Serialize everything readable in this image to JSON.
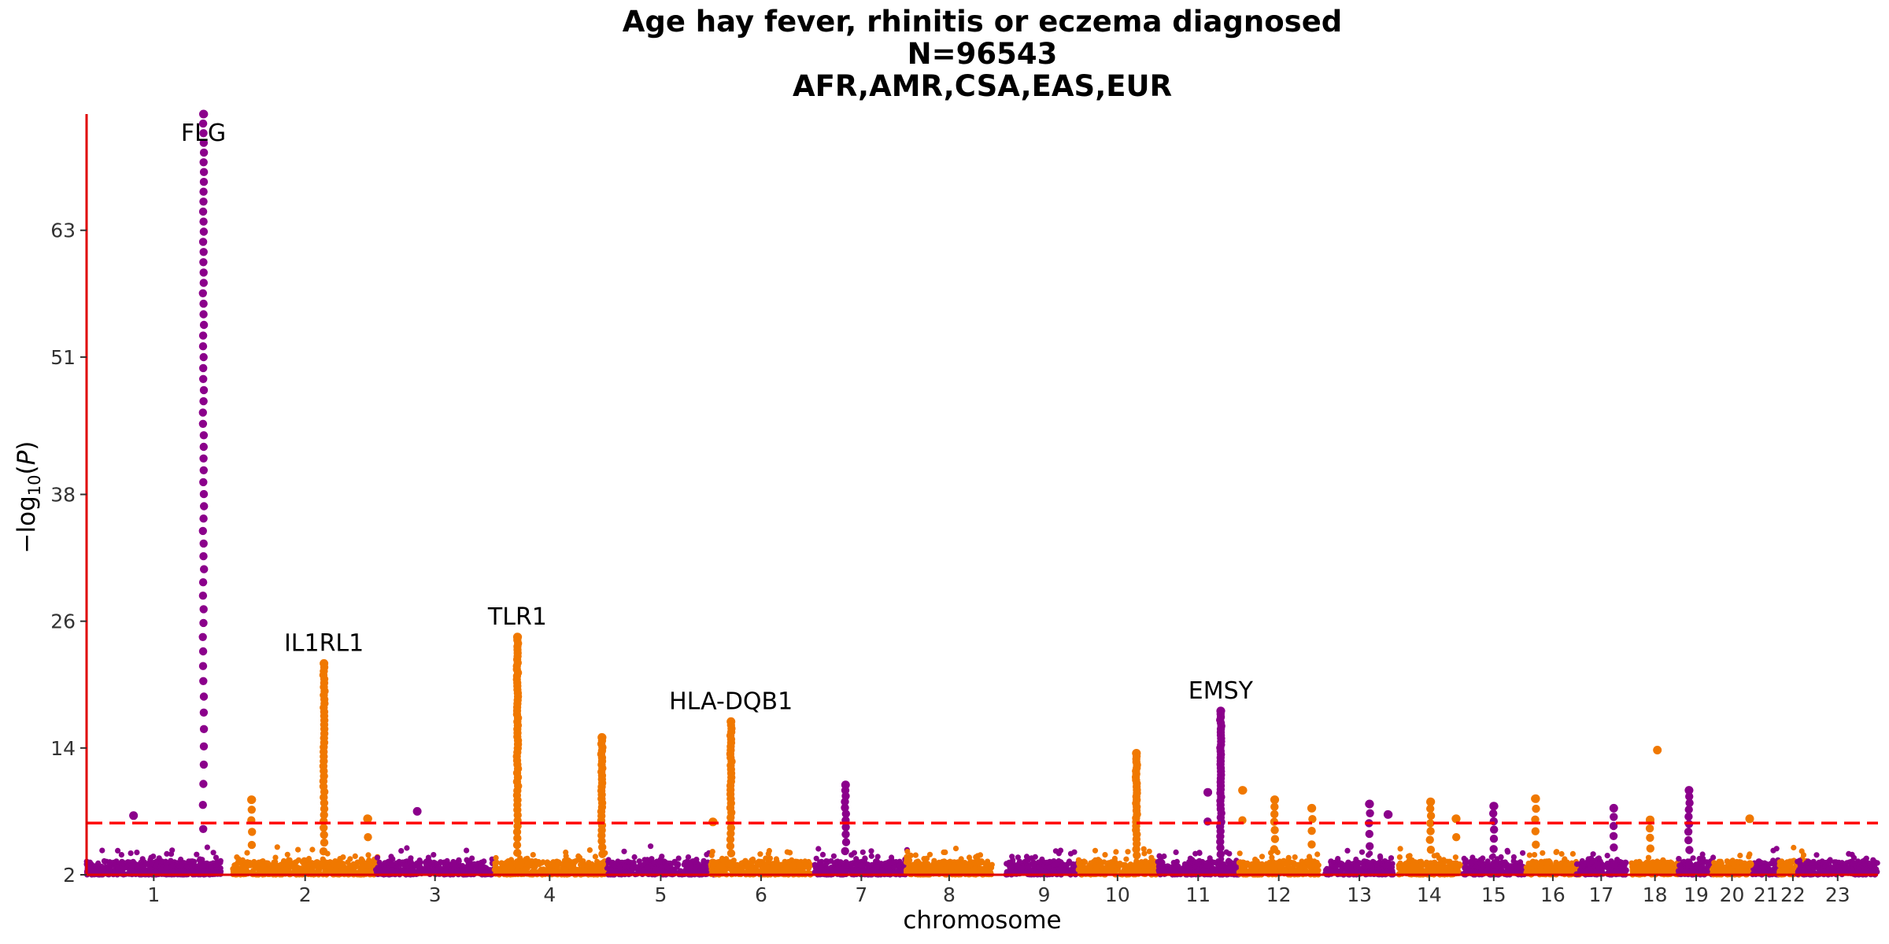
{
  "chart_data": {
    "type": "scatter",
    "subtype": "manhattan",
    "title": [
      "Age hay fever, rhinitis or eczema diagnosed",
      "N=96543",
      "AFR,AMR,CSA,EAS,EUR"
    ],
    "xlabel": "chromosome",
    "ylabel": "-log10(P)",
    "ylim": [
      2,
      74
    ],
    "yticks": [
      2,
      14,
      26,
      38,
      51,
      63
    ],
    "significance_line": 6.9,
    "colors": {
      "odd": "#8B008B",
      "even": "#F07800",
      "threshold": "#FF0000",
      "axis": "#E00000"
    },
    "chromosomes": [
      {
        "label": "1",
        "center": 0.0375,
        "width": 0.075
      },
      {
        "label": "2",
        "center": 0.122,
        "width": 0.081
      },
      {
        "label": "3",
        "center": 0.1945,
        "width": 0.066
      },
      {
        "label": "4",
        "center": 0.2585,
        "width": 0.062
      },
      {
        "label": "5",
        "center": 0.3205,
        "width": 0.06
      },
      {
        "label": "6",
        "center": 0.3765,
        "width": 0.056
      },
      {
        "label": "7",
        "center": 0.4325,
        "width": 0.052
      },
      {
        "label": "8",
        "center": 0.4815,
        "width": 0.048
      },
      {
        "label": "9",
        "center": 0.5345,
        "width": 0.043
      },
      {
        "label": "10",
        "center": 0.5755,
        "width": 0.044
      },
      {
        "label": "11",
        "center": 0.6205,
        "width": 0.045
      },
      {
        "label": "12",
        "center": 0.6655,
        "width": 0.045
      },
      {
        "label": "13",
        "center": 0.7105,
        "width": 0.038
      },
      {
        "label": "14",
        "center": 0.7495,
        "width": 0.035
      },
      {
        "label": "15",
        "center": 0.7855,
        "width": 0.034
      },
      {
        "label": "16",
        "center": 0.8185,
        "width": 0.03
      },
      {
        "label": "17",
        "center": 0.8455,
        "width": 0.028
      },
      {
        "label": "18",
        "center": 0.8755,
        "width": 0.027
      },
      {
        "label": "19",
        "center": 0.8985,
        "width": 0.02
      },
      {
        "label": "20",
        "center": 0.9185,
        "width": 0.022
      },
      {
        "label": "21",
        "center": 0.9375,
        "width": 0.015
      },
      {
        "label": "22",
        "center": 0.9525,
        "width": 0.016
      },
      {
        "label": "23",
        "center": 0.9775,
        "width": 0.045
      }
    ],
    "peaks": [
      {
        "chr": "1",
        "pos": 0.87,
        "max": 74,
        "sig_spread": 14,
        "count": 60
      },
      {
        "chr": "1",
        "pos": 0.35,
        "max": 7.6,
        "sig_spread": 0,
        "count": 2
      },
      {
        "chr": "2",
        "pos": 0.13,
        "max": 9.1,
        "sig_spread": 2,
        "count": 6
      },
      {
        "chr": "2",
        "pos": 0.63,
        "max": 22,
        "sig_spread": 9,
        "count": 40
      },
      {
        "chr": "2",
        "pos": 0.93,
        "max": 7.3,
        "sig_spread": 0,
        "count": 3
      },
      {
        "chr": "3",
        "pos": 0.35,
        "max": 8.0,
        "sig_spread": 0,
        "count": 1
      },
      {
        "chr": "4",
        "pos": 0.21,
        "max": 24.5,
        "sig_spread": 12,
        "count": 55
      },
      {
        "chr": "4",
        "pos": 0.97,
        "max": 15,
        "sig_spread": 6,
        "count": 30
      },
      {
        "chr": "6",
        "pos": 0.2,
        "max": 16.5,
        "sig_spread": 7,
        "count": 32
      },
      {
        "chr": "6",
        "pos": 0.02,
        "max": 7.0,
        "sig_spread": 0,
        "count": 2
      },
      {
        "chr": "7",
        "pos": 0.33,
        "max": 10.5,
        "sig_spread": 3,
        "count": 12
      },
      {
        "chr": "10",
        "pos": 0.74,
        "max": 13.5,
        "sig_spread": 7,
        "count": 30
      },
      {
        "chr": "11",
        "pos": 0.78,
        "max": 17.5,
        "sig_spread": 10,
        "count": 40
      },
      {
        "chr": "11",
        "pos": 0.62,
        "max": 9.8,
        "sig_spread": 0,
        "count": 3
      },
      {
        "chr": "12",
        "pos": 0.05,
        "max": 10.0,
        "sig_spread": 0,
        "count": 3
      },
      {
        "chr": "12",
        "pos": 0.45,
        "max": 9.1,
        "sig_spread": 2,
        "count": 8
      },
      {
        "chr": "12",
        "pos": 0.91,
        "max": 8.3,
        "sig_spread": 1,
        "count": 5
      },
      {
        "chr": "13",
        "pos": 0.65,
        "max": 8.7,
        "sig_spread": 1,
        "count": 6
      },
      {
        "chr": "13",
        "pos": 0.92,
        "max": 7.7,
        "sig_spread": 0,
        "count": 2
      },
      {
        "chr": "14",
        "pos": 0.52,
        "max": 8.9,
        "sig_spread": 2,
        "count": 8
      },
      {
        "chr": "14",
        "pos": 0.93,
        "max": 7.3,
        "sig_spread": 0,
        "count": 3
      },
      {
        "chr": "15",
        "pos": 0.5,
        "max": 8.5,
        "sig_spread": 1,
        "count": 7
      },
      {
        "chr": "16",
        "pos": 0.18,
        "max": 9.2,
        "sig_spread": 1,
        "count": 6
      },
      {
        "chr": "17",
        "pos": 0.75,
        "max": 8.3,
        "sig_spread": 1,
        "count": 6
      },
      {
        "chr": "18",
        "pos": 0.55,
        "max": 13.8,
        "sig_spread": 0,
        "count": 1
      },
      {
        "chr": "18",
        "pos": 0.4,
        "max": 7.2,
        "sig_spread": 1,
        "count": 5
      },
      {
        "chr": "19",
        "pos": 0.3,
        "max": 10.0,
        "sig_spread": 3,
        "count": 10
      },
      {
        "chr": "20",
        "pos": 0.95,
        "max": 7.3,
        "sig_spread": 0,
        "count": 2
      }
    ],
    "annotations": [
      {
        "text": "FLG",
        "chr": "1",
        "pos": 0.87,
        "y": 74
      },
      {
        "text": "IL1RL1",
        "chr": "2",
        "pos": 0.63,
        "y": 22
      },
      {
        "text": "TLR1",
        "chr": "4",
        "pos": 0.21,
        "y": 24.5
      },
      {
        "text": "HLA-DQB1",
        "chr": "6",
        "pos": 0.2,
        "y": 16.5
      },
      {
        "text": "EMSY",
        "chr": "11",
        "pos": 0.78,
        "y": 17.5
      }
    ]
  }
}
